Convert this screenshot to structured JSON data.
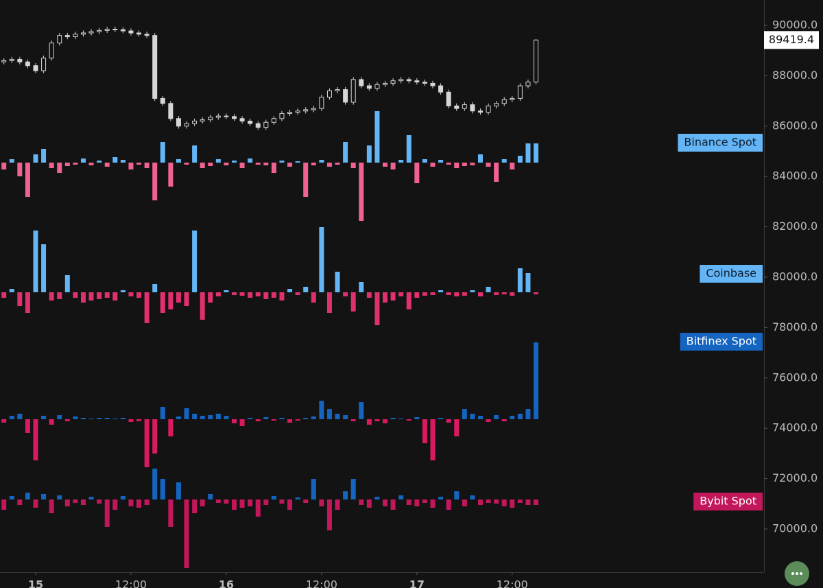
{
  "chart_data": [
    {
      "type": "candlestick",
      "x": [
        -4,
        -3,
        -2,
        -1,
        0,
        1,
        2,
        3,
        4,
        5,
        6,
        7,
        8,
        9,
        10,
        11,
        12,
        13,
        14,
        15,
        16,
        17,
        18,
        19,
        20,
        21,
        22,
        23,
        24,
        25,
        26,
        27,
        28,
        29,
        30,
        31,
        32,
        33,
        34,
        35,
        36,
        37,
        38,
        39,
        40,
        41,
        42,
        43,
        44,
        45,
        46,
        47,
        48,
        49,
        50,
        51,
        52,
        53,
        54,
        55,
        56,
        57,
        58,
        59,
        60,
        61,
        62,
        63
      ],
      "open": [
        88550,
        88600,
        88650,
        88550,
        88400,
        88200,
        88700,
        89300,
        89600,
        89550,
        89650,
        89700,
        89750,
        89800,
        89850,
        89830,
        89780,
        89700,
        89650,
        89600,
        87100,
        86900,
        86300,
        86000,
        86100,
        86200,
        86250,
        86350,
        86400,
        86380,
        86300,
        86200,
        86100,
        85950,
        86150,
        86300,
        86500,
        86550,
        86600,
        86650,
        86700,
        87150,
        87400,
        87450,
        86950,
        87850,
        87600,
        87500,
        87650,
        87700,
        87800,
        87850,
        87800,
        87750,
        87700,
        87600,
        87350,
        86800,
        86700,
        86850,
        86600,
        86550,
        86800,
        86900,
        87050,
        87100,
        87600,
        87750
      ],
      "high": [
        88700,
        88750,
        88750,
        88650,
        88500,
        88800,
        89400,
        89700,
        89700,
        89750,
        89800,
        89850,
        89900,
        89950,
        89950,
        89930,
        89880,
        89800,
        89750,
        89700,
        87200,
        87000,
        86400,
        86200,
        86300,
        86350,
        86450,
        86500,
        86500,
        86480,
        86400,
        86300,
        86200,
        86250,
        86400,
        86600,
        86650,
        86700,
        86750,
        86800,
        87250,
        87500,
        87550,
        87550,
        87950,
        87950,
        87700,
        87750,
        87800,
        87900,
        87950,
        87950,
        87900,
        87850,
        87800,
        87700,
        87450,
        86900,
        86950,
        86950,
        86700,
        86900,
        87000,
        87150,
        87200,
        87700,
        87850,
        89450
      ],
      "low": [
        88450,
        88500,
        88450,
        88300,
        88100,
        88100,
        88600,
        89200,
        89450,
        89450,
        89550,
        89600,
        89650,
        89700,
        89730,
        89680,
        89600,
        89550,
        89500,
        87000,
        86800,
        86200,
        85900,
        85900,
        86000,
        86100,
        86150,
        86250,
        86280,
        86200,
        86100,
        86000,
        85850,
        85850,
        86050,
        86200,
        86400,
        86450,
        86500,
        86550,
        86600,
        87050,
        87300,
        86850,
        86850,
        87500,
        87400,
        87400,
        87550,
        87600,
        87700,
        87700,
        87650,
        87600,
        87500,
        87250,
        86700,
        86600,
        86600,
        86500,
        86450,
        86450,
        86700,
        86800,
        86950,
        87000,
        87500,
        87650
      ],
      "close": [
        88600,
        88650,
        88550,
        88400,
        88200,
        88700,
        89300,
        89600,
        89550,
        89650,
        89700,
        89750,
        89800,
        89850,
        89830,
        89780,
        89700,
        89650,
        89600,
        87100,
        86900,
        86300,
        86000,
        86100,
        86200,
        86250,
        86350,
        86400,
        86380,
        86300,
        86200,
        86100,
        85950,
        86150,
        86300,
        86500,
        86550,
        86600,
        86650,
        86700,
        87150,
        87400,
        87450,
        86950,
        87850,
        87600,
        87500,
        87650,
        87700,
        87800,
        87850,
        87800,
        87750,
        87700,
        87600,
        87350,
        86800,
        86700,
        86850,
        86600,
        86550,
        86800,
        86900,
        87050,
        87100,
        87600,
        87750,
        89419.4
      ],
      "color": "#d6d6d6",
      "xlim": [
        -4.49,
        91.71
      ],
      "xticks": [
        {
          "value": 0,
          "label": "15"
        },
        {
          "value": 12,
          "label": "12:00"
        },
        {
          "value": 24,
          "label": "16"
        },
        {
          "value": 36,
          "label": "12:00"
        },
        {
          "value": 48,
          "label": "17"
        },
        {
          "value": 60,
          "label": "12:00"
        }
      ],
      "ylim": [
        68283,
        91008
      ],
      "yticks": [
        {
          "value": 70000,
          "label": "70000.0"
        },
        {
          "value": 72000,
          "label": "72000.0"
        },
        {
          "value": 74000,
          "label": "74000.0"
        },
        {
          "value": 76000,
          "label": "76000.0"
        },
        {
          "value": 78000,
          "label": "78000.0"
        },
        {
          "value": 80000,
          "label": "80000.0"
        },
        {
          "value": 82000,
          "label": "82000.0"
        },
        {
          "value": 84000,
          "label": "84000.0"
        },
        {
          "value": 86000,
          "label": "86000.0"
        },
        {
          "value": 88000,
          "label": "88000.0"
        },
        {
          "value": 90000,
          "label": "90000.0"
        }
      ]
    },
    {
      "type": "bar",
      "name": "Binance Spot",
      "color": "#64b5f6",
      "down_color": "#f06292",
      "values": [
        -10,
        5,
        -20,
        -50,
        12,
        20,
        -8,
        -15,
        -5,
        -3,
        6,
        -4,
        3,
        -6,
        8,
        4,
        -10,
        -3,
        -8,
        -55,
        30,
        -35,
        5,
        -3,
        25,
        -8,
        -5,
        5,
        -4,
        3,
        -8,
        6,
        -3,
        -4,
        -15,
        3,
        -6,
        2,
        -50,
        -4,
        4,
        -6,
        -3,
        30,
        -8,
        -85,
        25,
        75,
        -6,
        -10,
        4,
        40,
        -30,
        5,
        -6,
        4,
        -3,
        -8,
        -5,
        -4,
        12,
        -6,
        -28,
        5,
        -10,
        10,
        28,
        28
      ]
    },
    {
      "type": "bar",
      "name": "Coinbase",
      "color": "#64b5f6",
      "down_color": "#e0306f",
      "values": [
        -8,
        5,
        -20,
        -30,
        90,
        70,
        -12,
        -10,
        25,
        -8,
        -15,
        -12,
        -10,
        -8,
        -12,
        3,
        -6,
        -8,
        -45,
        12,
        -30,
        -25,
        -15,
        -20,
        90,
        -40,
        -15,
        -6,
        3,
        -4,
        -5,
        -8,
        -6,
        -10,
        -8,
        -12,
        5,
        -4,
        8,
        -15,
        95,
        -30,
        30,
        -6,
        -28,
        15,
        -8,
        -48,
        -15,
        -12,
        -6,
        -25,
        -8,
        -5,
        -4,
        3,
        -4,
        -6,
        -5,
        3,
        -6,
        8,
        -4,
        -3,
        -5,
        35,
        28,
        -3
      ]
    },
    {
      "type": "bar",
      "name": "Bitfinex Spot",
      "color": "#1565c0",
      "down_color": "#d81b60",
      "values": [
        -5,
        5,
        8,
        -20,
        -60,
        5,
        -8,
        6,
        -3,
        4,
        2,
        1,
        2,
        2,
        1,
        2,
        -4,
        -3,
        -70,
        -50,
        18,
        -25,
        4,
        16,
        8,
        5,
        6,
        8,
        5,
        -6,
        -10,
        2,
        -3,
        3,
        -2,
        2,
        -5,
        -2,
        2,
        4,
        27,
        15,
        8,
        6,
        -3,
        25,
        -8,
        -3,
        -6,
        2,
        1,
        -2,
        3,
        -35,
        -60,
        2,
        -5,
        -25,
        15,
        8,
        5,
        -4,
        6,
        -3,
        5,
        8,
        15,
        112
      ]
    },
    {
      "type": "bar",
      "name": "Bybit Spot",
      "color": "#1565c0",
      "down_color": "#c2185b",
      "values": [
        -15,
        5,
        -8,
        10,
        -12,
        8,
        -20,
        6,
        -10,
        -5,
        -8,
        4,
        -6,
        -40,
        -15,
        5,
        -10,
        -12,
        -8,
        45,
        30,
        -40,
        25,
        -100,
        -20,
        -10,
        8,
        -5,
        -6,
        -15,
        -12,
        -10,
        -25,
        -8,
        5,
        -6,
        -15,
        3,
        -5,
        30,
        -10,
        -45,
        -15,
        12,
        30,
        -8,
        -12,
        4,
        -10,
        -15,
        6,
        -8,
        -10,
        -5,
        -12,
        4,
        -15,
        12,
        -10,
        6,
        -8,
        -5,
        -6,
        -10,
        -12,
        -5,
        -8,
        -8
      ]
    }
  ]
}
